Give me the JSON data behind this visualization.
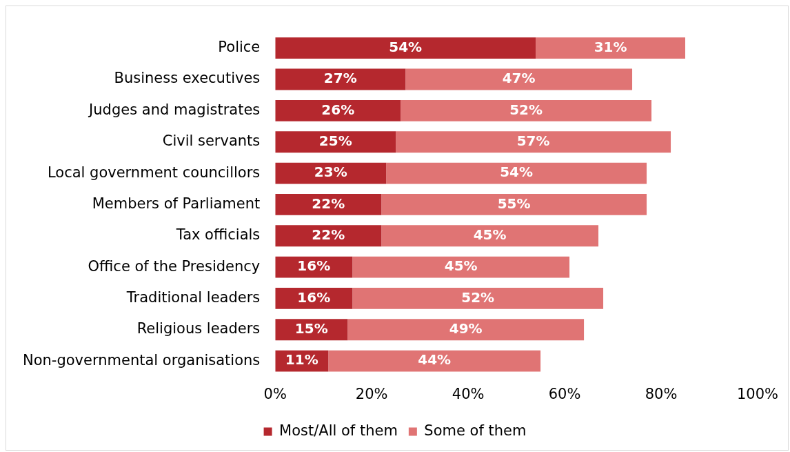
{
  "chart_data": {
    "type": "bar",
    "orientation": "horizontal",
    "stacked": true,
    "categories": [
      "Police",
      "Business executives",
      "Judges and magistrates",
      "Civil servants",
      "Local government councillors",
      "Members of Parliament",
      "Tax officials",
      "Office of the Presidency",
      "Traditional leaders",
      "Religious leaders",
      "Non-governmental organisations"
    ],
    "series": [
      {
        "name": "Most/All of them",
        "color": "#b5282e",
        "values": [
          54,
          27,
          26,
          25,
          23,
          22,
          22,
          16,
          16,
          15,
          11
        ],
        "value_labels": [
          "54%",
          "27%",
          "26%",
          "25%",
          "23%",
          "22%",
          "22%",
          "16%",
          "16%",
          "15%",
          "11%"
        ]
      },
      {
        "name": "Some of them",
        "color": "#e07474",
        "values": [
          31,
          47,
          52,
          57,
          54,
          55,
          45,
          45,
          52,
          49,
          44
        ],
        "value_labels": [
          "31%",
          "47%",
          "52%",
          "57%",
          "54%",
          "55%",
          "45%",
          "45%",
          "52%",
          "49%",
          "44%"
        ]
      }
    ],
    "xlim": [
      0,
      100
    ],
    "xticks": [
      {
        "value": 0,
        "label": "0%"
      },
      {
        "value": 20,
        "label": "20%"
      },
      {
        "value": 40,
        "label": "40%"
      },
      {
        "value": 60,
        "label": "60%"
      },
      {
        "value": 80,
        "label": "80%"
      },
      {
        "value": 100,
        "label": "100%"
      }
    ],
    "grid": false,
    "legend": "bottom"
  }
}
